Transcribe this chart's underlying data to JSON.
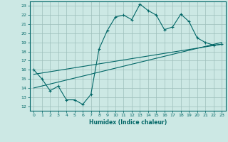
{
  "bg_color": "#cce8e4",
  "grid_color": "#9dbfbb",
  "line_color": "#006666",
  "xlabel": "Humidex (Indice chaleur)",
  "xlim": [
    -0.5,
    23.5
  ],
  "ylim": [
    11.5,
    23.5
  ],
  "yticks": [
    12,
    13,
    14,
    15,
    16,
    17,
    18,
    19,
    20,
    21,
    22,
    23
  ],
  "xticks": [
    0,
    1,
    2,
    3,
    4,
    5,
    6,
    7,
    8,
    9,
    10,
    11,
    12,
    13,
    14,
    15,
    16,
    17,
    18,
    19,
    20,
    21,
    22,
    23
  ],
  "data_x": [
    0,
    1,
    2,
    3,
    4,
    5,
    6,
    7,
    8,
    9,
    10,
    11,
    12,
    13,
    14,
    15,
    16,
    17,
    18,
    19,
    20,
    21,
    22,
    23
  ],
  "data_y": [
    16,
    15,
    13.7,
    14.2,
    12.7,
    12.7,
    12.2,
    13.3,
    18.3,
    20.3,
    21.8,
    22.0,
    21.5,
    23.2,
    22.5,
    22.0,
    20.4,
    20.7,
    22.1,
    21.3,
    19.5,
    19.0,
    18.7,
    18.8
  ],
  "line1_x": [
    0,
    23
  ],
  "line1_y": [
    15.5,
    18.8
  ],
  "line2_x": [
    0,
    23
  ],
  "line2_y": [
    14.0,
    19.0
  ],
  "marker": "+"
}
